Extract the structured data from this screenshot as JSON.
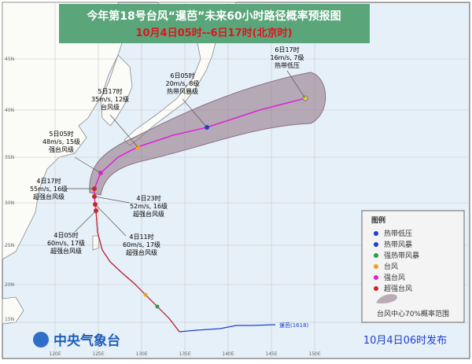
{
  "header": {
    "title": "今年第18号台风“暹芭”未来60小时路径概率预报图",
    "subtitle": "10月4日05时--6日17时(北京时)"
  },
  "track_labels": [
    {
      "time": "6日17时",
      "intensity": "16m/s, 7级",
      "category": "热带低压"
    },
    {
      "time": "6日05时",
      "intensity": "20m/s, 8级",
      "category": "热带风暴级"
    },
    {
      "time": "5日17时",
      "intensity": "35m/s, 12级",
      "category": "台风级"
    },
    {
      "time": "5日05时",
      "intensity": "48m/s, 15级",
      "category": "强台风级"
    },
    {
      "time": "4日17时",
      "intensity": "55m/s, 16级",
      "category": "超强台风级"
    },
    {
      "time": "4日23时",
      "intensity": "52m/s, 16级",
      "category": "超强台风级"
    },
    {
      "time": "4日05时",
      "intensity": "60m/s, 17级",
      "category": "超强台风级"
    },
    {
      "time": "4日11时",
      "intensity": "60m/s, 17级",
      "category": "超强台风级"
    }
  ],
  "storm_name": "暹芭(1618)",
  "legend": {
    "title": "图例",
    "items": [
      "热带低压",
      "热带风暴",
      "强热带风暴",
      "台风",
      "强台风",
      "超强台风"
    ],
    "cone": "台风中心70%概率范围"
  },
  "footer": {
    "agency": "中央气象台",
    "issued": "10月4日06时发布"
  },
  "axes": {
    "lat": [
      "45N",
      "40N",
      "35N",
      "30N",
      "25N",
      "20N",
      "15N"
    ],
    "lon": [
      "120E",
      "125E",
      "130E",
      "135E",
      "140E",
      "145E",
      "150E"
    ]
  }
}
